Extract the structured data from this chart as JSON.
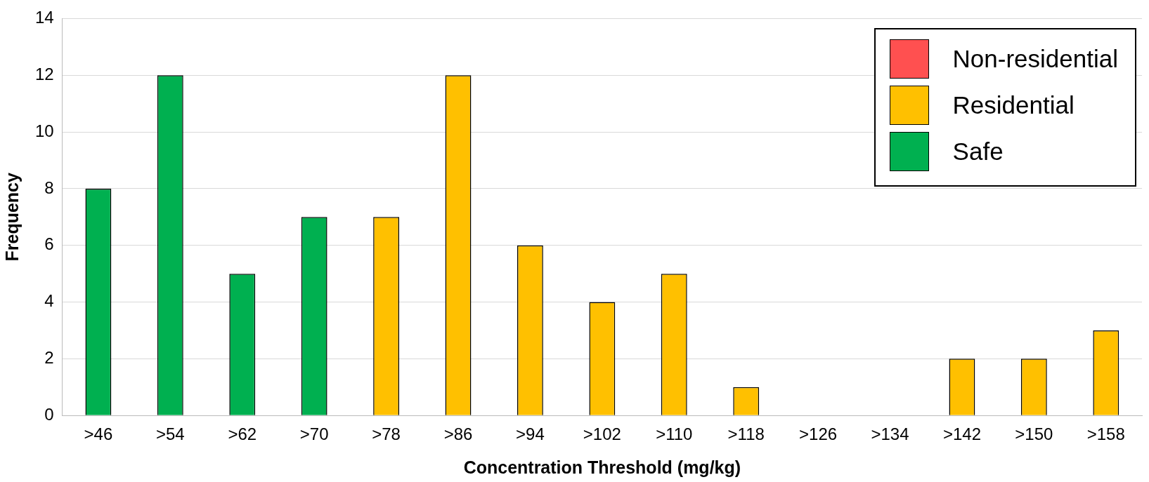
{
  "chart_data": {
    "type": "bar",
    "xlabel": "Concentration Threshold (mg/kg)",
    "ylabel": "Frequency",
    "categories": [
      ">46",
      ">54",
      ">62",
      ">70",
      ">78",
      ">86",
      ">94",
      ">102",
      ">110",
      ">118",
      ">126",
      ">134",
      ">142",
      ">150",
      ">158"
    ],
    "series": [
      {
        "name": "Non-residential",
        "color": "#ff5050",
        "values": [
          null,
          null,
          null,
          null,
          null,
          null,
          null,
          null,
          null,
          null,
          null,
          null,
          null,
          null,
          null
        ]
      },
      {
        "name": "Residential",
        "color": "#ffc000",
        "values": [
          null,
          null,
          null,
          null,
          7,
          12,
          6,
          4,
          5,
          1,
          null,
          null,
          2,
          2,
          3
        ]
      },
      {
        "name": "Safe",
        "color": "#00b050",
        "values": [
          8,
          12,
          5,
          7,
          null,
          null,
          null,
          null,
          null,
          null,
          null,
          null,
          null,
          null,
          null
        ]
      }
    ],
    "stacked": true,
    "ylim": [
      0,
      14
    ],
    "yticks": [
      0,
      2,
      4,
      6,
      8,
      10,
      12,
      14
    ],
    "grid": "y",
    "legend": "top right"
  }
}
